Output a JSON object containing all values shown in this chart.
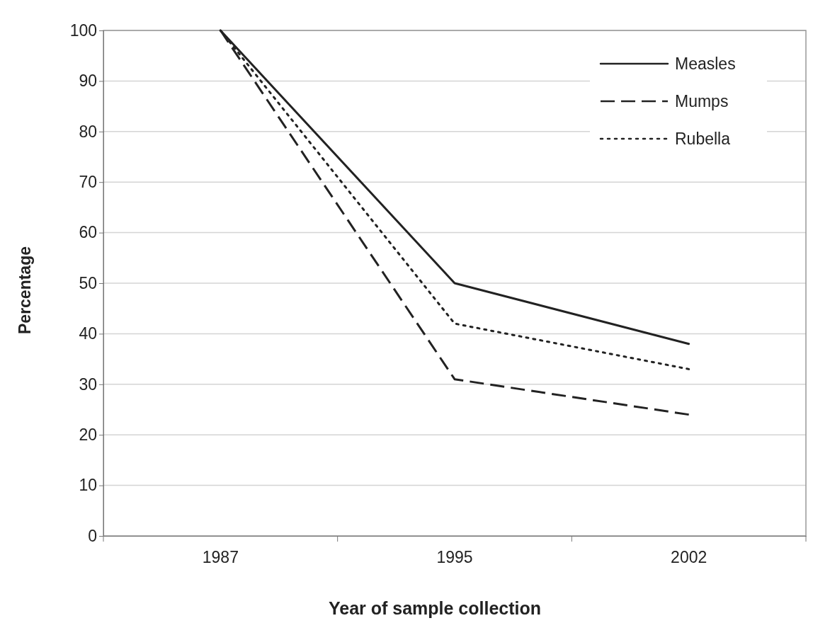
{
  "chart_data": {
    "type": "line",
    "xlabel": "Year of sample collection",
    "ylabel": "Percentage",
    "categories": [
      "1987",
      "1995",
      "2002"
    ],
    "series": [
      {
        "name": "Measles",
        "color": "#222222",
        "line_style": "solid",
        "values": [
          100,
          50,
          38
        ]
      },
      {
        "name": "Mumps",
        "color": "#222222",
        "line_style": "dashed",
        "values": [
          100,
          31,
          24
        ]
      },
      {
        "name": "Rubella",
        "color": "#222222",
        "line_style": "dotted",
        "values": [
          100,
          42,
          33
        ]
      }
    ],
    "ylim": [
      0,
      100
    ],
    "yticks": [
      0,
      10,
      20,
      30,
      40,
      50,
      60,
      70,
      80,
      90,
      100
    ],
    "grid": "y",
    "legend": "top right",
    "marker": "none"
  }
}
